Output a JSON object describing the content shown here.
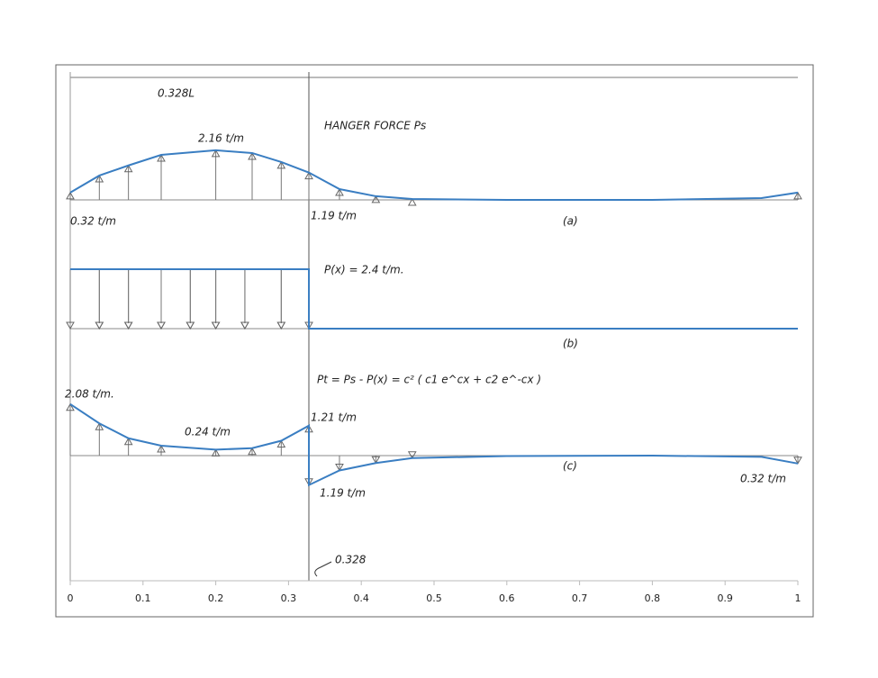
{
  "chart_data": {
    "type": "line",
    "xlim": [
      0,
      1
    ],
    "xticks": [
      0,
      0.1,
      0.2,
      0.3,
      0.4,
      0.5,
      0.6,
      0.7,
      0.8,
      0.9,
      1
    ],
    "color": "#3a7ec2",
    "series": [
      {
        "x": [
          0,
          0.04,
          0.08,
          0.125,
          0.2,
          0.25,
          0.29,
          0.328,
          0.37,
          0.42,
          0.47,
          0.6,
          0.8,
          0.95,
          1
        ],
        "values": [
          0.32,
          1.06,
          1.5,
          1.96,
          2.16,
          2.04,
          1.65,
          1.19,
          0.47,
          0.16,
          0.04,
          0,
          0,
          0.08,
          0.32
        ]
      },
      {
        "x": [
          0,
          0.328,
          0.328,
          1
        ],
        "values": [
          2.4,
          2.4,
          0,
          0
        ]
      },
      {
        "x": [
          0,
          0.04,
          0.08,
          0.125,
          0.2,
          0.25,
          0.29,
          0.328,
          0.328,
          0.37,
          0.42,
          0.47,
          0.6,
          0.8,
          0.95,
          1
        ],
        "values": [
          2.08,
          1.3,
          0.7,
          0.4,
          0.24,
          0.3,
          0.6,
          1.21,
          -1.19,
          -0.6,
          -0.3,
          -0.1,
          -0.02,
          0,
          -0.05,
          -0.32
        ]
      }
    ],
    "annotations": [
      "0.328L",
      "HANGER FORCE Ps",
      "2.16 t/m",
      "0.32 t/m",
      "1.19 t/m",
      "(a)",
      "P(x) = 2.4 t/m.",
      "(b)",
      "Pt = Ps - P(x) = c² ( c1 e^cx + c2 e^-cx )",
      "2.08 t/m.",
      "0.24 t/m",
      "1.21 t/m",
      "(c)",
      "1.19 t/m",
      "0.32 t/m",
      "0.328"
    ]
  }
}
